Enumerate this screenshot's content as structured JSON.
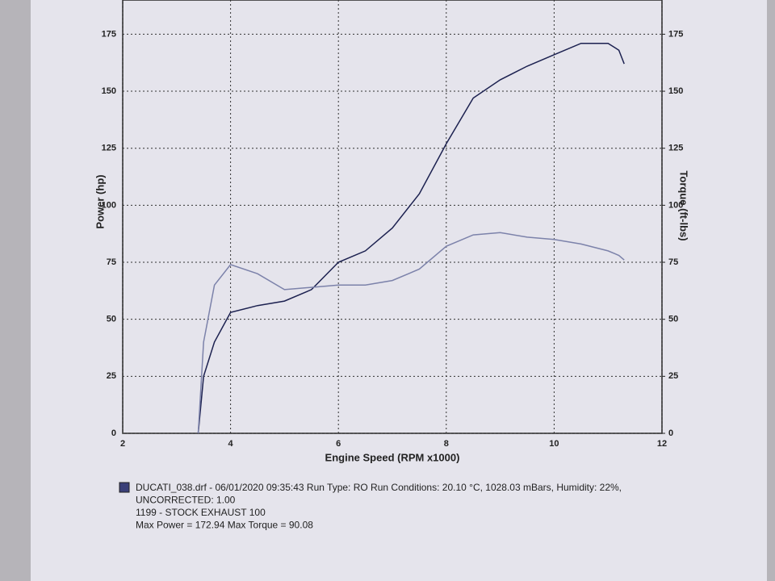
{
  "chart_data": {
    "type": "line",
    "xlabel": "Engine Speed (RPM x1000)",
    "ylabel": "Power (hp)",
    "y2label": "Torque (ft-lbs)",
    "x": [
      3.4,
      3.5,
      3.7,
      4.0,
      4.5,
      5.0,
      5.5,
      6.0,
      6.5,
      7.0,
      7.5,
      8.0,
      8.5,
      9.0,
      9.5,
      10.0,
      10.5,
      11.0,
      11.2,
      11.3
    ],
    "series": [
      {
        "color": "#1c2150",
        "values": [
          0,
          25,
          40,
          53,
          56,
          58,
          63,
          75,
          80,
          90,
          105,
          127,
          147,
          155,
          161,
          166,
          171,
          171,
          168,
          162
        ]
      },
      {
        "color": "#7c82aa",
        "axis": "y2",
        "values": [
          0,
          40,
          65,
          74,
          70,
          63,
          64,
          65,
          65,
          67,
          72,
          82,
          87,
          88,
          86,
          85,
          83,
          80,
          78,
          76
        ]
      }
    ],
    "xlim": [
      2,
      12
    ],
    "xticks": [
      2,
      4,
      6,
      8,
      10,
      12
    ],
    "ylim": [
      0,
      190
    ],
    "yticks": [
      0,
      25,
      50,
      75,
      100,
      125,
      150,
      175
    ],
    "y2lim": [
      0,
      190
    ],
    "y2ticks": [
      0,
      25,
      50,
      75,
      100,
      125,
      150,
      175
    ],
    "grid": true,
    "notes": [
      "DUCATI_038.drf - 06/01/2020 09:35:43  Run Type: RO  Run Conditions: 20.10 °C, 1028.03 mBars,  Humidity:  22%,",
      "UNCORRECTED: 1.00",
      "1199 - STOCK EXHAUST 100",
      "Max Power = 172.94  Max Torque = 90.08"
    ]
  }
}
